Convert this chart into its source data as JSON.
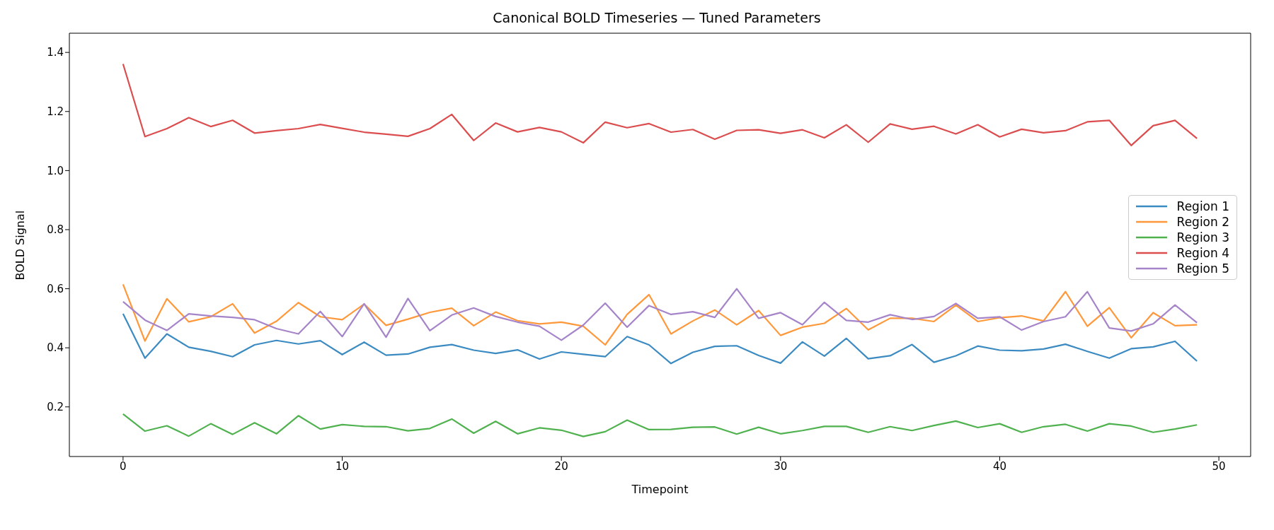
{
  "chart_data": {
    "type": "line",
    "title": "Canonical BOLD Timeseries — Tuned Parameters",
    "xlabel": "Timepoint",
    "ylabel": "BOLD Signal",
    "x": [
      0,
      1,
      2,
      3,
      4,
      5,
      6,
      7,
      8,
      9,
      10,
      11,
      12,
      13,
      14,
      15,
      16,
      17,
      18,
      19,
      20,
      21,
      22,
      23,
      24,
      25,
      26,
      27,
      28,
      29,
      30,
      31,
      32,
      33,
      34,
      35,
      36,
      37,
      38,
      39,
      40,
      41,
      42,
      43,
      44,
      45,
      46,
      47,
      48,
      49
    ],
    "series": [
      {
        "name": "Region 1",
        "color": "#3b8bc2",
        "values": [
          0.515,
          0.365,
          0.447,
          0.402,
          0.388,
          0.37,
          0.41,
          0.425,
          0.413,
          0.424,
          0.377,
          0.419,
          0.375,
          0.379,
          0.402,
          0.411,
          0.392,
          0.381,
          0.393,
          0.362,
          0.386,
          0.378,
          0.37,
          0.438,
          0.41,
          0.347,
          0.385,
          0.405,
          0.407,
          0.374,
          0.348,
          0.42,
          0.372,
          0.432,
          0.363,
          0.373,
          0.411,
          0.351,
          0.373,
          0.406,
          0.392,
          0.39,
          0.396,
          0.412,
          0.388,
          0.365,
          0.397,
          0.403,
          0.422,
          0.355
        ]
      },
      {
        "name": "Region 2",
        "color": "#ff983a",
        "values": [
          0.615,
          0.423,
          0.566,
          0.488,
          0.505,
          0.549,
          0.45,
          0.49,
          0.553,
          0.505,
          0.495,
          0.548,
          0.476,
          0.497,
          0.52,
          0.534,
          0.475,
          0.521,
          0.492,
          0.481,
          0.487,
          0.473,
          0.41,
          0.513,
          0.58,
          0.447,
          0.491,
          0.528,
          0.478,
          0.526,
          0.442,
          0.47,
          0.483,
          0.533,
          0.461,
          0.5,
          0.5,
          0.489,
          0.544,
          0.489,
          0.502,
          0.508,
          0.491,
          0.59,
          0.473,
          0.536,
          0.434,
          0.519,
          0.475,
          0.478
        ]
      },
      {
        "name": "Region 3",
        "color": "#4fb24f",
        "values": [
          0.176,
          0.118,
          0.136,
          0.101,
          0.143,
          0.107,
          0.146,
          0.109,
          0.17,
          0.125,
          0.14,
          0.134,
          0.133,
          0.119,
          0.127,
          0.159,
          0.111,
          0.151,
          0.109,
          0.129,
          0.121,
          0.1,
          0.116,
          0.155,
          0.123,
          0.124,
          0.131,
          0.132,
          0.108,
          0.131,
          0.109,
          0.12,
          0.134,
          0.134,
          0.114,
          0.133,
          0.12,
          0.137,
          0.152,
          0.13,
          0.143,
          0.114,
          0.133,
          0.141,
          0.118,
          0.143,
          0.135,
          0.114,
          0.125,
          0.139
        ]
      },
      {
        "name": "Region 4",
        "color": "#db4d4e",
        "values": [
          1.361,
          1.115,
          1.142,
          1.179,
          1.149,
          1.17,
          1.127,
          1.135,
          1.142,
          1.156,
          1.143,
          1.13,
          1.123,
          1.116,
          1.142,
          1.19,
          1.102,
          1.161,
          1.131,
          1.146,
          1.131,
          1.094,
          1.164,
          1.145,
          1.159,
          1.13,
          1.139,
          1.106,
          1.136,
          1.138,
          1.126,
          1.138,
          1.111,
          1.155,
          1.096,
          1.158,
          1.14,
          1.15,
          1.124,
          1.155,
          1.114,
          1.14,
          1.128,
          1.135,
          1.165,
          1.17,
          1.085,
          1.152,
          1.17,
          1.109
        ]
      },
      {
        "name": "Region 5",
        "color": "#a684c9",
        "values": [
          0.556,
          0.494,
          0.459,
          0.515,
          0.508,
          0.503,
          0.495,
          0.465,
          0.447,
          0.523,
          0.438,
          0.549,
          0.436,
          0.567,
          0.458,
          0.511,
          0.535,
          0.506,
          0.487,
          0.473,
          0.426,
          0.477,
          0.551,
          0.47,
          0.543,
          0.513,
          0.522,
          0.503,
          0.6,
          0.5,
          0.519,
          0.478,
          0.554,
          0.493,
          0.487,
          0.512,
          0.496,
          0.506,
          0.55,
          0.5,
          0.505,
          0.46,
          0.489,
          0.505,
          0.59,
          0.467,
          0.457,
          0.481,
          0.545,
          0.485
        ]
      }
    ],
    "xlim": [
      -2.45,
      51.45
    ],
    "xticks": [
      0,
      10,
      20,
      30,
      40,
      50
    ],
    "ylim": [
      0.032,
      1.465
    ],
    "yticks": [
      0.2,
      0.4,
      0.6,
      0.8,
      {
        "value": 1,
        "label": "1.0"
      },
      1.2,
      1.4
    ],
    "legend": "right",
    "grid": false,
    "marker": "none",
    "line_style": "solid"
  }
}
